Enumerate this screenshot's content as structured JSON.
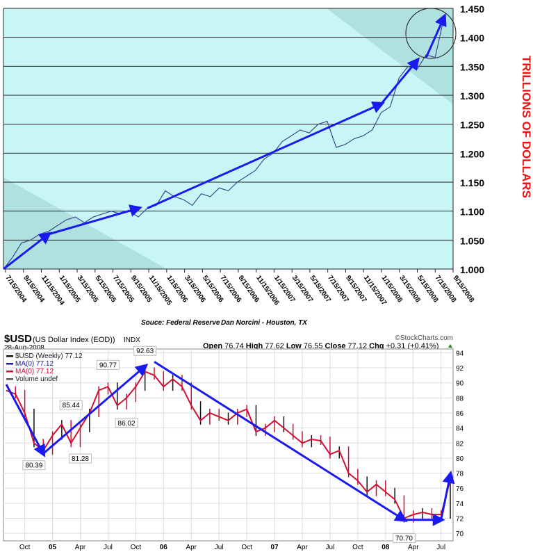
{
  "chart_data": [
    {
      "type": "line",
      "ylabel": "TRILLIONS OF DOLLARS",
      "source": "Souce: Federal Reserve",
      "author": "Dan Norcini - Houston, TX",
      "ylim": [
        1.0,
        1.45
      ],
      "yticks": [
        "1.000",
        "1.050",
        "1.100",
        "1.150",
        "1.200",
        "1.250",
        "1.300",
        "1.350",
        "1.400",
        "1.450"
      ],
      "xticks": [
        "7/15/2004",
        "9/15/2004",
        "11/15/2004",
        "1/15/2005",
        "3/15/2005",
        "5/15/2005",
        "7/15/2005",
        "9/15/2005",
        "11/15/2005",
        "1/15/2006",
        "3/15/2006",
        "5/15/2006",
        "7/15/2006",
        "9/15/2006",
        "11/15/2006",
        "1/15/2007",
        "3/15/2007",
        "5/15/2007",
        "7/15/2007",
        "9/15/2007",
        "11/15/2007",
        "1/15/2008",
        "3/15/2008",
        "5/15/2008",
        "7/15/2008",
        "9/15/2008"
      ],
      "x": [
        "2004-07",
        "2004-08",
        "2004-09",
        "2004-10",
        "2004-11",
        "2004-12",
        "2005-01",
        "2005-02",
        "2005-03",
        "2005-04",
        "2005-05",
        "2005-06",
        "2005-07",
        "2005-08",
        "2005-09",
        "2005-10",
        "2005-11",
        "2005-12",
        "2006-01",
        "2006-02",
        "2006-03",
        "2006-04",
        "2006-05",
        "2006-06",
        "2006-07",
        "2006-08",
        "2006-09",
        "2006-10",
        "2006-11",
        "2006-12",
        "2007-01",
        "2007-02",
        "2007-03",
        "2007-04",
        "2007-05",
        "2007-06",
        "2007-07",
        "2007-08",
        "2007-09",
        "2007-10",
        "2007-11",
        "2007-12",
        "2008-01",
        "2008-02",
        "2008-03",
        "2008-04",
        "2008-05",
        "2008-06",
        "2008-07",
        "2008-08"
      ],
      "y": [
        1.0,
        1.02,
        1.045,
        1.05,
        1.06,
        1.065,
        1.075,
        1.085,
        1.09,
        1.08,
        1.09,
        1.095,
        1.1,
        1.095,
        1.1,
        1.09,
        1.105,
        1.11,
        1.135,
        1.125,
        1.12,
        1.11,
        1.13,
        1.125,
        1.14,
        1.135,
        1.15,
        1.16,
        1.17,
        1.19,
        1.2,
        1.22,
        1.23,
        1.24,
        1.235,
        1.25,
        1.255,
        1.21,
        1.215,
        1.225,
        1.23,
        1.24,
        1.27,
        1.28,
        1.33,
        1.35,
        1.345,
        1.37,
        1.365,
        1.435
      ],
      "trend_arrows": [
        [
          [
            "2004-07",
            1.0
          ],
          [
            "2004-12",
            1.06
          ]
        ],
        [
          [
            "2004-12",
            1.06
          ],
          [
            "2005-10",
            1.105
          ]
        ],
        [
          [
            "2005-11",
            1.105
          ],
          [
            "2008-01",
            1.285
          ]
        ],
        [
          [
            "2008-01",
            1.285
          ],
          [
            "2008-05",
            1.36
          ]
        ],
        [
          [
            "2008-06",
            1.365
          ],
          [
            "2008-08",
            1.435
          ]
        ]
      ],
      "grid": true,
      "background": "#c8f6f6",
      "line_color": "#3a4a8a",
      "arrow_color": "#1a1aee",
      "label_color": "#ee1111"
    },
    {
      "type": "line",
      "symbol": "$USD",
      "name": "(US Dollar Index (EOD))",
      "exchange": "INDX",
      "date": "28-Aug-2008",
      "brand": "©StockCharts.com",
      "quote": {
        "open_label": "Open",
        "open": "76.74",
        "high_label": "High",
        "high": "77.62",
        "low_label": "Low",
        "low": "76.55",
        "close_label": "Close",
        "close": "77.12",
        "chg_label": "Chg",
        "chg": "+0.31 (+0.41%)"
      },
      "legend": [
        "$USD (Weekly) 77.12",
        "MA(0) 77.12",
        "MA(0) 77.12",
        "Volume undef"
      ],
      "ylim": [
        69,
        94.5
      ],
      "yticks": [
        70,
        72,
        74,
        76,
        78,
        80,
        82,
        84,
        86,
        88,
        90,
        92,
        94
      ],
      "xticks": [
        [
          "Oct",
          "2004-10"
        ],
        [
          "05",
          "2005-01"
        ],
        [
          "Apr",
          "2005-04"
        ],
        [
          "Jul",
          "2005-07"
        ],
        [
          "Oct",
          "2005-10"
        ],
        [
          "06",
          "2006-01"
        ],
        [
          "Apr",
          "2006-04"
        ],
        [
          "Jul",
          "2006-07"
        ],
        [
          "Oct",
          "2006-10"
        ],
        [
          "07",
          "2007-01"
        ],
        [
          "Apr",
          "2007-04"
        ],
        [
          "Jul",
          "2007-07"
        ],
        [
          "Oct",
          "2007-10"
        ],
        [
          "08",
          "2008-01"
        ],
        [
          "Apr",
          "2008-04"
        ],
        [
          "Jul",
          "2008-07"
        ]
      ],
      "x": [
        "2004-08",
        "2004-09",
        "2004-10",
        "2004-11",
        "2004-12",
        "2005-01",
        "2005-02",
        "2005-03",
        "2005-04",
        "2005-05",
        "2005-06",
        "2005-07",
        "2005-08",
        "2005-09",
        "2005-10",
        "2005-11",
        "2005-12",
        "2006-01",
        "2006-02",
        "2006-03",
        "2006-04",
        "2006-05",
        "2006-06",
        "2006-07",
        "2006-08",
        "2006-09",
        "2006-10",
        "2006-11",
        "2006-12",
        "2007-01",
        "2007-02",
        "2007-03",
        "2007-04",
        "2007-05",
        "2007-06",
        "2007-07",
        "2007-08",
        "2007-09",
        "2007-10",
        "2007-11",
        "2007-12",
        "2008-01",
        "2008-02",
        "2008-03",
        "2008-04",
        "2008-05",
        "2008-06",
        "2008-07",
        "2008-08"
      ],
      "y": [
        89,
        88.5,
        86,
        82,
        81,
        83,
        84.5,
        82,
        84,
        86,
        89,
        89.5,
        87,
        88,
        89.5,
        91.5,
        91,
        89.5,
        90.5,
        89.5,
        87,
        85,
        86,
        85.5,
        85,
        86,
        86.5,
        83.5,
        84,
        85,
        84,
        83,
        82,
        82.5,
        82.3,
        80.5,
        81,
        78,
        77,
        75.5,
        76.5,
        75.5,
        74.5,
        72,
        72.5,
        72.8,
        72.5,
        72.5,
        77.12
      ],
      "annotations": [
        [
          "2004-11",
          "80.39",
          80.39
        ],
        [
          "2005-03",
          "85.44",
          85.44
        ],
        [
          "2005-04",
          "81.28",
          81.28
        ],
        [
          "2005-07",
          "90.77",
          90.77
        ],
        [
          "2005-09",
          "86.02",
          86.02
        ],
        [
          "2005-11",
          "92.63",
          92.63
        ],
        [
          "2008-03",
          "70.70",
          70.7
        ]
      ],
      "trend_arrows": [
        [
          [
            "2004-08",
            89.8
          ],
          [
            "2004-12",
            80.6
          ]
        ],
        [
          [
            "2004-12",
            80.6
          ],
          [
            "2005-11",
            92.2
          ]
        ],
        [
          [
            "2005-12",
            92.8
          ],
          [
            "2008-03",
            71.8
          ]
        ],
        [
          [
            "2008-03",
            71.8
          ],
          [
            "2008-07",
            71.8
          ]
        ],
        [
          [
            "2008-07",
            71.8
          ],
          [
            "2008-08",
            77.8
          ]
        ]
      ],
      "grid": true,
      "line_color": "#cc1133",
      "arrow_color": "#1a1aee",
      "up_color": "#228822"
    }
  ]
}
